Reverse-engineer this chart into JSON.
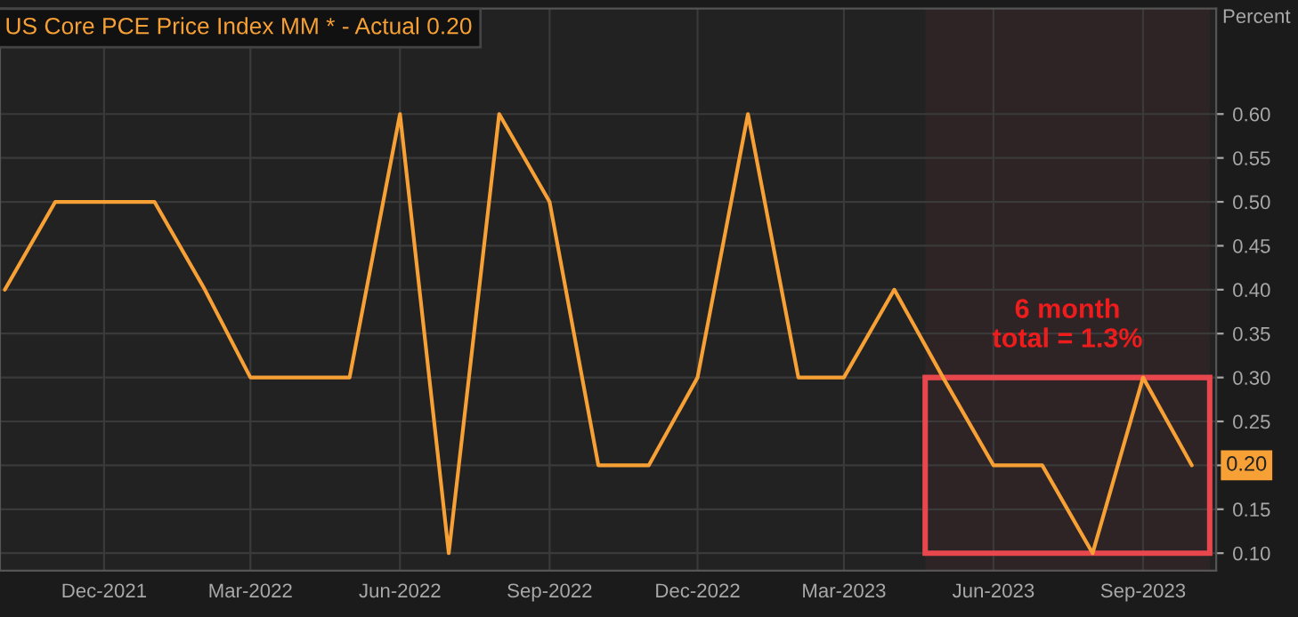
{
  "chart_data": {
    "type": "line",
    "title": "US Core PCE Price Index MM * - Actual 0.20",
    "ylabel": "Percent",
    "x": [
      "2021-10-01",
      "2021-11-01",
      "2021-12-01",
      "2022-01-01",
      "2022-02-01",
      "2022-03-01",
      "2022-04-01",
      "2022-05-01",
      "2022-06-01",
      "2022-07-01",
      "2022-08-01",
      "2022-09-01",
      "2022-10-01",
      "2022-11-01",
      "2022-12-01",
      "2023-01-01",
      "2023-02-01",
      "2023-03-01",
      "2023-04-01",
      "2023-05-01",
      "2023-06-01",
      "2023-07-01",
      "2023-08-01",
      "2023-09-01",
      "2023-10-01"
    ],
    "series": [
      {
        "color": "#f7a035",
        "values": [
          0.4,
          0.5,
          0.5,
          0.5,
          0.4,
          0.3,
          0.3,
          0.3,
          0.6,
          0.1,
          0.6,
          0.5,
          0.2,
          0.2,
          0.3,
          0.6,
          0.3,
          0.3,
          0.4,
          0.3,
          0.2,
          0.2,
          0.1,
          0.3,
          0.2
        ],
        "value_labels": [
          null,
          null,
          null,
          null,
          null,
          null,
          null,
          null,
          null,
          null,
          null,
          null,
          null,
          null,
          null,
          null,
          null,
          null,
          null,
          null,
          null,
          null,
          null,
          null,
          "0.20"
        ]
      }
    ],
    "xlim": [
      "2021-09-28",
      "2023-10-16"
    ],
    "xticks": [
      {
        "value": "2021-12-01",
        "label": "Dec-2021"
      },
      {
        "value": "2022-03-01",
        "label": "Mar-2022"
      },
      {
        "value": "2022-06-01",
        "label": "Jun-2022"
      },
      {
        "value": "2022-09-01",
        "label": "Sep-2022"
      },
      {
        "value": "2022-12-01",
        "label": "Dec-2022"
      },
      {
        "value": "2023-03-01",
        "label": "Mar-2023"
      },
      {
        "value": "2023-06-01",
        "label": "Jun-2023"
      },
      {
        "value": "2023-09-01",
        "label": "Sep-2023"
      }
    ],
    "ylim": [
      0.08,
      0.72
    ],
    "yticks": [
      {
        "value": 0.1,
        "label": "0.10"
      },
      0.15,
      {
        "value": 0.2,
        "label": null
      },
      0.25,
      {
        "value": 0.3,
        "label": "0.30"
      },
      0.35,
      {
        "value": 0.4,
        "label": "0.40"
      },
      0.45,
      {
        "value": 0.5,
        "label": "0.50"
      },
      0.55,
      {
        "value": 0.6,
        "label": "0.60"
      }
    ],
    "bands": [
      {
        "axis": "x",
        "from": "2023-04-20",
        "to": "2023-10-12",
        "color": "#e8474d"
      }
    ],
    "annotations": [
      "6 month\ntotal = 1.3%"
    ],
    "grid": true,
    "legend": false,
    "marker": "none",
    "line_style": "solid"
  }
}
